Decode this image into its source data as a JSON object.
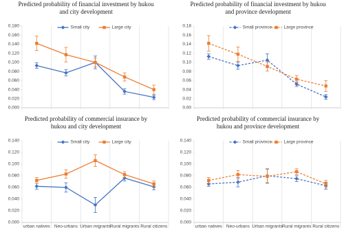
{
  "chart_data": [
    {
      "type": "line",
      "title": "Predicted probability of financial investment by hukou and city development",
      "categories": [
        null,
        null,
        null,
        null,
        null
      ],
      "series": [
        {
          "name": "Small city",
          "color": "#4472c4",
          "dash": false,
          "marker": "diamond",
          "values": [
            0.093,
            0.077,
            0.1,
            0.036,
            0.023
          ],
          "errors": [
            0.006,
            0.007,
            0.014,
            0.006,
            0.005
          ]
        },
        {
          "name": "Large city",
          "color": "#ed7d31",
          "dash": false,
          "marker": "square",
          "values": [
            0.142,
            0.117,
            0.1,
            0.068,
            0.04
          ],
          "errors": [
            0.016,
            0.016,
            0.01,
            0.009,
            0.01
          ]
        }
      ],
      "ylim": [
        0,
        0.18
      ],
      "yticks": [
        {
          "value": 0,
          "label": "0.000"
        },
        {
          "value": 0.02,
          "label": "0.020"
        },
        {
          "value": 0.04,
          "label": "0.040"
        },
        {
          "value": 0.06,
          "label": "0.060"
        },
        {
          "value": 0.08,
          "label": "0.080"
        },
        {
          "value": 0.1,
          "label": "0.100"
        },
        {
          "value": 0.12,
          "label": "0.120"
        },
        {
          "value": 0.14,
          "label": "0.140"
        },
        {
          "value": 0.16,
          "label": "0.160"
        },
        {
          "value": 0.18,
          "label": "0.180"
        }
      ],
      "legend": "top"
    },
    {
      "type": "line",
      "title": "Predicted probability of financial investment by hukou and province development",
      "categories": [
        null,
        null,
        null,
        null,
        null
      ],
      "series": [
        {
          "name": "Small province",
          "color": "#4472c4",
          "dash": true,
          "marker": "diamond",
          "values": [
            0.113,
            0.093,
            0.105,
            0.052,
            0.024
          ],
          "errors": [
            0.006,
            0.008,
            0.014,
            0.005,
            0.005
          ]
        },
        {
          "name": "Large province",
          "color": "#ed7d31",
          "dash": true,
          "marker": "square",
          "values": [
            0.142,
            0.118,
            0.091,
            0.063,
            0.048
          ],
          "errors": [
            0.017,
            0.016,
            0.01,
            0.008,
            0.012
          ]
        }
      ],
      "ylim": [
        0,
        0.18
      ],
      "yticks": [
        {
          "value": 0,
          "label": "0.00"
        },
        {
          "value": 0.02,
          "label": "0.02"
        },
        {
          "value": 0.04,
          "label": "0.04"
        },
        {
          "value": 0.06,
          "label": "0.06"
        },
        {
          "value": 0.08,
          "label": "0.08"
        },
        {
          "value": 0.1,
          "label": "0.10"
        },
        {
          "value": 0.12,
          "label": "0.12"
        },
        {
          "value": 0.14,
          "label": "0.14"
        },
        {
          "value": 0.16,
          "label": "0.16"
        },
        {
          "value": 0.18,
          "label": "0.18"
        }
      ],
      "legend": "top"
    },
    {
      "type": "line",
      "title": "Predicted probability of commercial insurance by hukou and city development",
      "categories": [
        "urban natives",
        "Neo-urbans",
        "Urban migrants",
        "Rural migrants",
        "Rural citizens"
      ],
      "series": [
        {
          "name": "Small city",
          "color": "#4472c4",
          "dash": false,
          "marker": "diamond",
          "values": [
            0.062,
            0.06,
            0.03,
            0.076,
            0.061
          ],
          "errors": [
            0.005,
            0.008,
            0.013,
            0.005,
            0.005
          ]
        },
        {
          "name": "Large city",
          "color": "#ed7d31",
          "dash": false,
          "marker": "square",
          "values": [
            0.072,
            0.083,
            0.106,
            0.082,
            0.066
          ],
          "errors": [
            0.005,
            0.007,
            0.01,
            0.005,
            0.005
          ]
        }
      ],
      "ylim": [
        0,
        0.14
      ],
      "yticks": [
        {
          "value": 0,
          "label": "0.000"
        },
        {
          "value": 0.02,
          "label": "0.020"
        },
        {
          "value": 0.04,
          "label": "0.040"
        },
        {
          "value": 0.06,
          "label": "0.060"
        },
        {
          "value": 0.08,
          "label": "0.080"
        },
        {
          "value": 0.1,
          "label": "0.100"
        },
        {
          "value": 0.12,
          "label": "0.120"
        },
        {
          "value": 0.14,
          "label": "0.140"
        }
      ],
      "legend": "top"
    },
    {
      "type": "line",
      "title": "Predicted probability of commercial insurance by hukou and province development",
      "categories": [
        "urban natives",
        "Neo-urbans",
        "Urban migrants",
        "Rural migrants",
        "Rural citizens"
      ],
      "series": [
        {
          "name": "Small province",
          "color": "#4472c4",
          "dash": true,
          "marker": "diamond",
          "values": [
            0.066,
            0.069,
            0.08,
            0.075,
            0.063
          ],
          "errors": [
            0.004,
            0.008,
            0.012,
            0.005,
            0.006
          ]
        },
        {
          "name": "Large province",
          "color": "#ed7d31",
          "dash": true,
          "marker": "square",
          "values": [
            0.072,
            0.082,
            0.079,
            0.087,
            0.066
          ],
          "errors": [
            0.005,
            0.007,
            0.012,
            0.005,
            0.006
          ]
        }
      ],
      "ylim": [
        0,
        0.14
      ],
      "yticks": [
        {
          "value": 0,
          "label": "0.000"
        },
        {
          "value": 0.02,
          "label": "0.020"
        },
        {
          "value": 0.04,
          "label": "0.040"
        },
        {
          "value": 0.06,
          "label": "0.060"
        },
        {
          "value": 0.08,
          "label": "0.080"
        },
        {
          "value": 0.1,
          "label": "0.100"
        },
        {
          "value": 0.12,
          "label": "0.120"
        },
        {
          "value": 0.14,
          "label": "0.140"
        }
      ],
      "legend": "top"
    }
  ]
}
